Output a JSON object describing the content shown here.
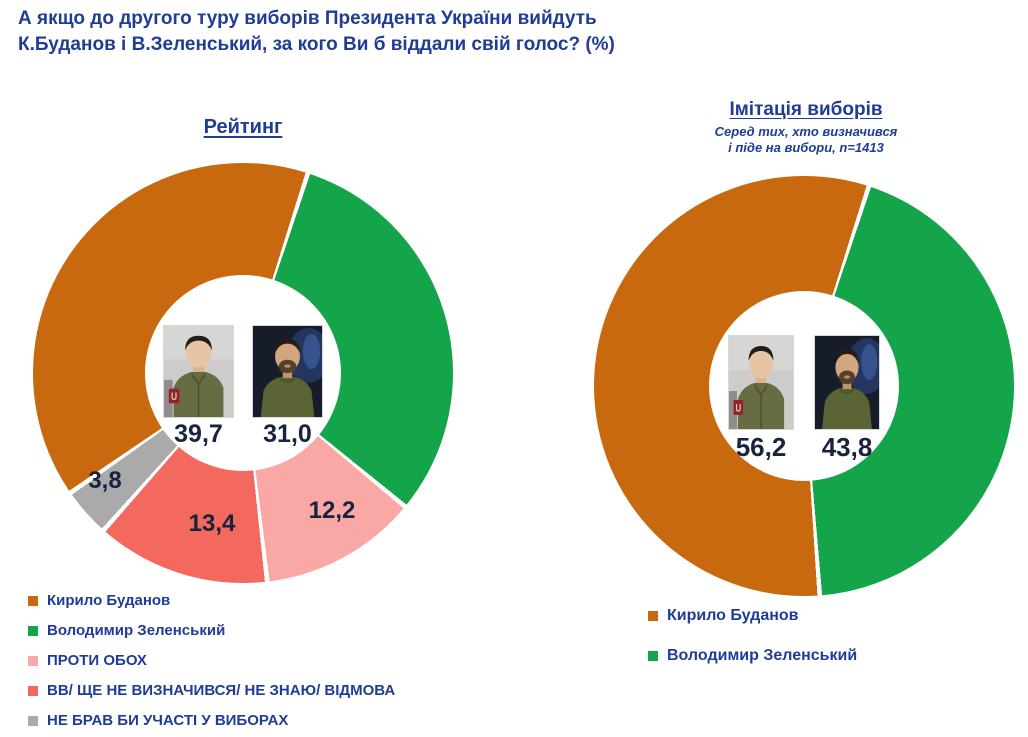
{
  "page_title": {
    "line1": "А якщо до другого туру виборів Президента України вийдуть",
    "line2": "К.Буданов і В.Зеленський, за кого Ви б віддали свій голос? (%)"
  },
  "left_chart": {
    "title": "Рейтинг",
    "value_budanov": "39,7",
    "value_zelensky": "31,0",
    "value_against_both": "12,2",
    "value_undecided": "13,4",
    "value_no_participation": "3,8"
  },
  "right_chart": {
    "title": "Імітація виборів",
    "subtitle_line1": "Серед тих, хто визначився",
    "subtitle_line2": "і піде на вибори, n=1413",
    "value_budanov": "56,2",
    "value_zelensky": "43,8"
  },
  "legend_left": {
    "items": [
      {
        "label": "Кирило Буданов",
        "color": "#C8690F"
      },
      {
        "label": "Володимир Зеленський",
        "color": "#14A44A"
      },
      {
        "label": "ПРОТИ ОБОХ",
        "color": "#F9A8A5"
      },
      {
        "label": "ВВ/ ЩЕ НЕ ВИЗНАЧИВСЯ/ НЕ ЗНАЮ/ ВІДМОВА",
        "color": "#F4695E"
      },
      {
        "label": "НЕ БРАВ БИ УЧАСТІ У ВИБОРАХ",
        "color": "#AAAAAA"
      }
    ]
  },
  "legend_right": {
    "items": [
      {
        "label": "Кирило Буданов",
        "color": "#C8690F"
      },
      {
        "label": "Володимир Зеленський",
        "color": "#14A44A"
      }
    ]
  },
  "colors": {
    "budanov_orange": "#C8690F",
    "zelensky_green": "#14A44A",
    "against_both_pink": "#F9A8A5",
    "undecided_red": "#F4695E",
    "no_participation_gray": "#AAAAAA",
    "heading_blue": "#1F3C97",
    "value_navy": "#17243E"
  },
  "chart_data": [
    {
      "type": "pie",
      "subtype": "donut",
      "title": "Рейтинг",
      "categories": [
        "Володимир Зеленський",
        "ПРОТИ ОБОХ",
        "ВВ/ ЩЕ НЕ ВИЗНАЧИВСЯ/ НЕ ЗНАЮ/ ВІДМОВА",
        "НЕ БРАВ БИ УЧАСТІ У ВИБОРАХ",
        "Кирило Буданов"
      ],
      "values": [
        31.0,
        12.2,
        13.4,
        3.8,
        39.7
      ],
      "labels": [
        "31,0",
        "12,2",
        "13,4",
        "3,8",
        "39,7"
      ],
      "colors": [
        "#14A44A",
        "#F9A8A5",
        "#F4695E",
        "#AAAAAA",
        "#C8690F"
      ],
      "start_angle_deg": 18,
      "legend_position": "bottom-left",
      "units": "%"
    },
    {
      "type": "pie",
      "subtype": "donut",
      "title": "Імітація виборів",
      "subtitle": "Серед тих, хто визначився і піде на вибори, n=1413",
      "categories": [
        "Володимир Зеленський",
        "Кирило Буданов"
      ],
      "values": [
        43.8,
        56.2
      ],
      "labels": [
        "43,8",
        "56,2"
      ],
      "colors": [
        "#14A44A",
        "#C8690F"
      ],
      "start_angle_deg": 18,
      "legend_position": "bottom",
      "units": "%"
    }
  ]
}
